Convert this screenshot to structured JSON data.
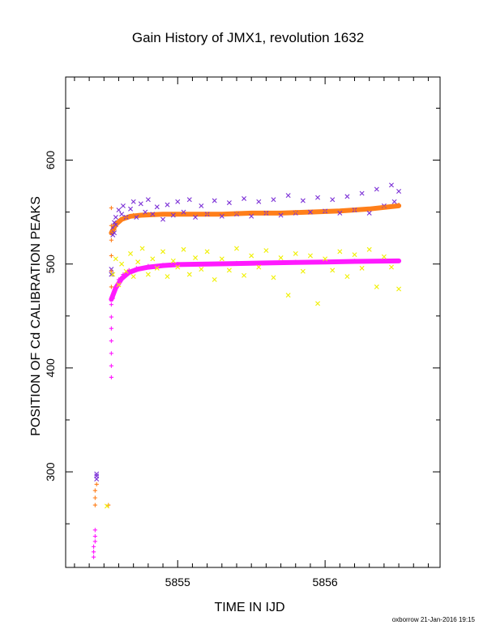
{
  "chart_data": {
    "type": "scatter",
    "title": "Gain History of JMX1, revolution 1632",
    "xlabel": "TIME IN IJD",
    "ylabel": "POSITION OF Cd CALIBRATION PEAKS",
    "footer": "oxborrow 21-Jan-2016 19:15",
    "xlim": [
      5854.24,
      5856.78
    ],
    "ylim": [
      208,
      680
    ],
    "x_ticks": [
      5855,
      5856
    ],
    "x_tick_labels": [
      "5855",
      "5856"
    ],
    "y_ticks": [
      300,
      400,
      500,
      600
    ],
    "y_tick_labels": [
      "300",
      "400",
      "500",
      "600"
    ],
    "grid": false,
    "legend": "none",
    "series": [
      {
        "marker": "x",
        "color": "#7b2fd6",
        "points": [
          [
            5854.45,
            298
          ],
          [
            5854.45,
            296
          ],
          [
            5854.45,
            293
          ],
          [
            5854.55,
            495
          ],
          [
            5854.55,
            490
          ],
          [
            5854.56,
            528
          ],
          [
            5854.56,
            535
          ],
          [
            5854.57,
            540
          ],
          [
            5854.57,
            530
          ],
          [
            5854.58,
            545
          ],
          [
            5854.58,
            538
          ],
          [
            5854.6,
            552
          ],
          [
            5854.62,
            548
          ],
          [
            5854.63,
            556
          ],
          [
            5854.65,
            545
          ],
          [
            5854.68,
            553
          ],
          [
            5854.7,
            560
          ],
          [
            5854.72,
            545
          ],
          [
            5854.75,
            558
          ],
          [
            5854.78,
            550
          ],
          [
            5854.8,
            562
          ],
          [
            5854.83,
            548
          ],
          [
            5854.86,
            555
          ],
          [
            5854.9,
            543
          ],
          [
            5854.93,
            557
          ],
          [
            5854.97,
            547
          ],
          [
            5855.0,
            560
          ],
          [
            5855.04,
            550
          ],
          [
            5855.08,
            562
          ],
          [
            5855.12,
            545
          ],
          [
            5855.16,
            556
          ],
          [
            5855.2,
            548
          ],
          [
            5855.25,
            561
          ],
          [
            5855.3,
            546
          ],
          [
            5855.35,
            559
          ],
          [
            5855.4,
            548
          ],
          [
            5855.45,
            563
          ],
          [
            5855.5,
            546
          ],
          [
            5855.55,
            560
          ],
          [
            5855.6,
            549
          ],
          [
            5855.65,
            562
          ],
          [
            5855.7,
            547
          ],
          [
            5855.75,
            566
          ],
          [
            5855.8,
            549
          ],
          [
            5855.85,
            561
          ],
          [
            5855.9,
            550
          ],
          [
            5855.95,
            564
          ],
          [
            5856.0,
            551
          ],
          [
            5856.05,
            562
          ],
          [
            5856.1,
            549
          ],
          [
            5856.15,
            565
          ],
          [
            5856.2,
            552
          ],
          [
            5856.25,
            568
          ],
          [
            5856.3,
            549
          ],
          [
            5856.35,
            572
          ],
          [
            5856.4,
            556
          ],
          [
            5856.45,
            576
          ],
          [
            5856.47,
            560
          ],
          [
            5856.5,
            570
          ]
        ]
      },
      {
        "marker": "+",
        "color": "#ff7f1a",
        "points": [
          [
            5854.44,
            282
          ],
          [
            5854.44,
            275
          ],
          [
            5854.44,
            268
          ],
          [
            5854.45,
            288
          ],
          [
            5854.53,
            268
          ],
          [
            5854.55,
            554
          ],
          [
            5854.55,
            537
          ],
          [
            5854.55,
            523
          ],
          [
            5854.55,
            508
          ],
          [
            5854.55,
            493
          ],
          [
            5854.55,
            478
          ],
          [
            5854.57,
            533
          ],
          [
            5854.6,
            540
          ],
          [
            5854.65,
            545
          ],
          [
            5854.7,
            547
          ],
          [
            5854.8,
            548
          ],
          [
            5854.9,
            548
          ],
          [
            5855.0,
            548
          ],
          [
            5855.2,
            548
          ],
          [
            5855.4,
            549
          ],
          [
            5855.6,
            549
          ],
          [
            5855.8,
            550
          ],
          [
            5856.0,
            551
          ],
          [
            5856.2,
            552
          ],
          [
            5856.4,
            555
          ],
          [
            5856.5,
            557
          ]
        ]
      },
      {
        "marker": "x",
        "color": "#f0f000",
        "points": [
          [
            5854.52,
            267
          ],
          [
            5854.56,
            490
          ],
          [
            5854.58,
            505
          ],
          [
            5854.6,
            480
          ],
          [
            5854.62,
            500
          ],
          [
            5854.65,
            493
          ],
          [
            5854.68,
            510
          ],
          [
            5854.7,
            488
          ],
          [
            5854.73,
            502
          ],
          [
            5854.76,
            515
          ],
          [
            5854.8,
            490
          ],
          [
            5854.83,
            505
          ],
          [
            5854.86,
            496
          ],
          [
            5854.9,
            512
          ],
          [
            5854.93,
            488
          ],
          [
            5854.97,
            503
          ],
          [
            5855.0,
            497
          ],
          [
            5855.04,
            514
          ],
          [
            5855.08,
            490
          ],
          [
            5855.12,
            506
          ],
          [
            5855.16,
            495
          ],
          [
            5855.2,
            512
          ],
          [
            5855.25,
            485
          ],
          [
            5855.3,
            505
          ],
          [
            5855.35,
            494
          ],
          [
            5855.4,
            515
          ],
          [
            5855.45,
            489
          ],
          [
            5855.5,
            508
          ],
          [
            5855.55,
            497
          ],
          [
            5855.6,
            513
          ],
          [
            5855.65,
            487
          ],
          [
            5855.7,
            506
          ],
          [
            5855.75,
            470
          ],
          [
            5855.8,
            510
          ],
          [
            5855.85,
            493
          ],
          [
            5855.9,
            508
          ],
          [
            5855.95,
            462
          ],
          [
            5856.0,
            505
          ],
          [
            5856.05,
            494
          ],
          [
            5856.1,
            512
          ],
          [
            5856.15,
            488
          ],
          [
            5856.2,
            509
          ],
          [
            5856.25,
            496
          ],
          [
            5856.3,
            514
          ],
          [
            5856.35,
            478
          ],
          [
            5856.4,
            507
          ],
          [
            5856.45,
            497
          ],
          [
            5856.5,
            476
          ]
        ]
      },
      {
        "marker": "+",
        "color": "#ff1aff",
        "points": [
          [
            5854.43,
            218
          ],
          [
            5854.43,
            223
          ],
          [
            5854.43,
            228
          ],
          [
            5854.44,
            233
          ],
          [
            5854.44,
            238
          ],
          [
            5854.44,
            244
          ],
          [
            5854.55,
            391
          ],
          [
            5854.55,
            402
          ],
          [
            5854.55,
            414
          ],
          [
            5854.55,
            426
          ],
          [
            5854.55,
            438
          ],
          [
            5854.55,
            449
          ],
          [
            5854.55,
            461
          ],
          [
            5854.56,
            467
          ],
          [
            5854.58,
            477
          ],
          [
            5854.6,
            485
          ],
          [
            5854.63,
            490
          ],
          [
            5854.67,
            494
          ],
          [
            5854.72,
            496
          ],
          [
            5854.8,
            498
          ],
          [
            5854.9,
            499
          ],
          [
            5855.0,
            500
          ],
          [
            5855.2,
            500
          ],
          [
            5855.4,
            501
          ],
          [
            5855.6,
            501
          ],
          [
            5855.8,
            502
          ],
          [
            5856.0,
            502
          ],
          [
            5856.2,
            503
          ],
          [
            5856.4,
            503
          ],
          [
            5856.5,
            503
          ]
        ]
      }
    ],
    "fits": [
      {
        "color": "#ff7f1a",
        "points": [
          [
            5854.55,
            530
          ],
          [
            5854.58,
            538
          ],
          [
            5854.62,
            543
          ],
          [
            5854.68,
            546
          ],
          [
            5854.75,
            547
          ],
          [
            5854.9,
            548
          ],
          [
            5855.1,
            548
          ],
          [
            5855.3,
            548
          ],
          [
            5855.5,
            549
          ],
          [
            5855.7,
            549
          ],
          [
            5855.9,
            550
          ],
          [
            5856.1,
            551
          ],
          [
            5856.3,
            553
          ],
          [
            5856.5,
            556
          ]
        ]
      },
      {
        "color": "#ff1aff",
        "points": [
          [
            5854.55,
            466
          ],
          [
            5854.58,
            477
          ],
          [
            5854.62,
            486
          ],
          [
            5854.67,
            492
          ],
          [
            5854.73,
            495
          ],
          [
            5854.8,
            497
          ],
          [
            5854.9,
            498.5
          ],
          [
            5855.0,
            499.5
          ],
          [
            5855.2,
            500
          ],
          [
            5855.4,
            500.5
          ],
          [
            5855.6,
            501
          ],
          [
            5855.8,
            501.5
          ],
          [
            5856.0,
            502
          ],
          [
            5856.2,
            502.5
          ],
          [
            5856.5,
            503
          ]
        ]
      }
    ]
  }
}
